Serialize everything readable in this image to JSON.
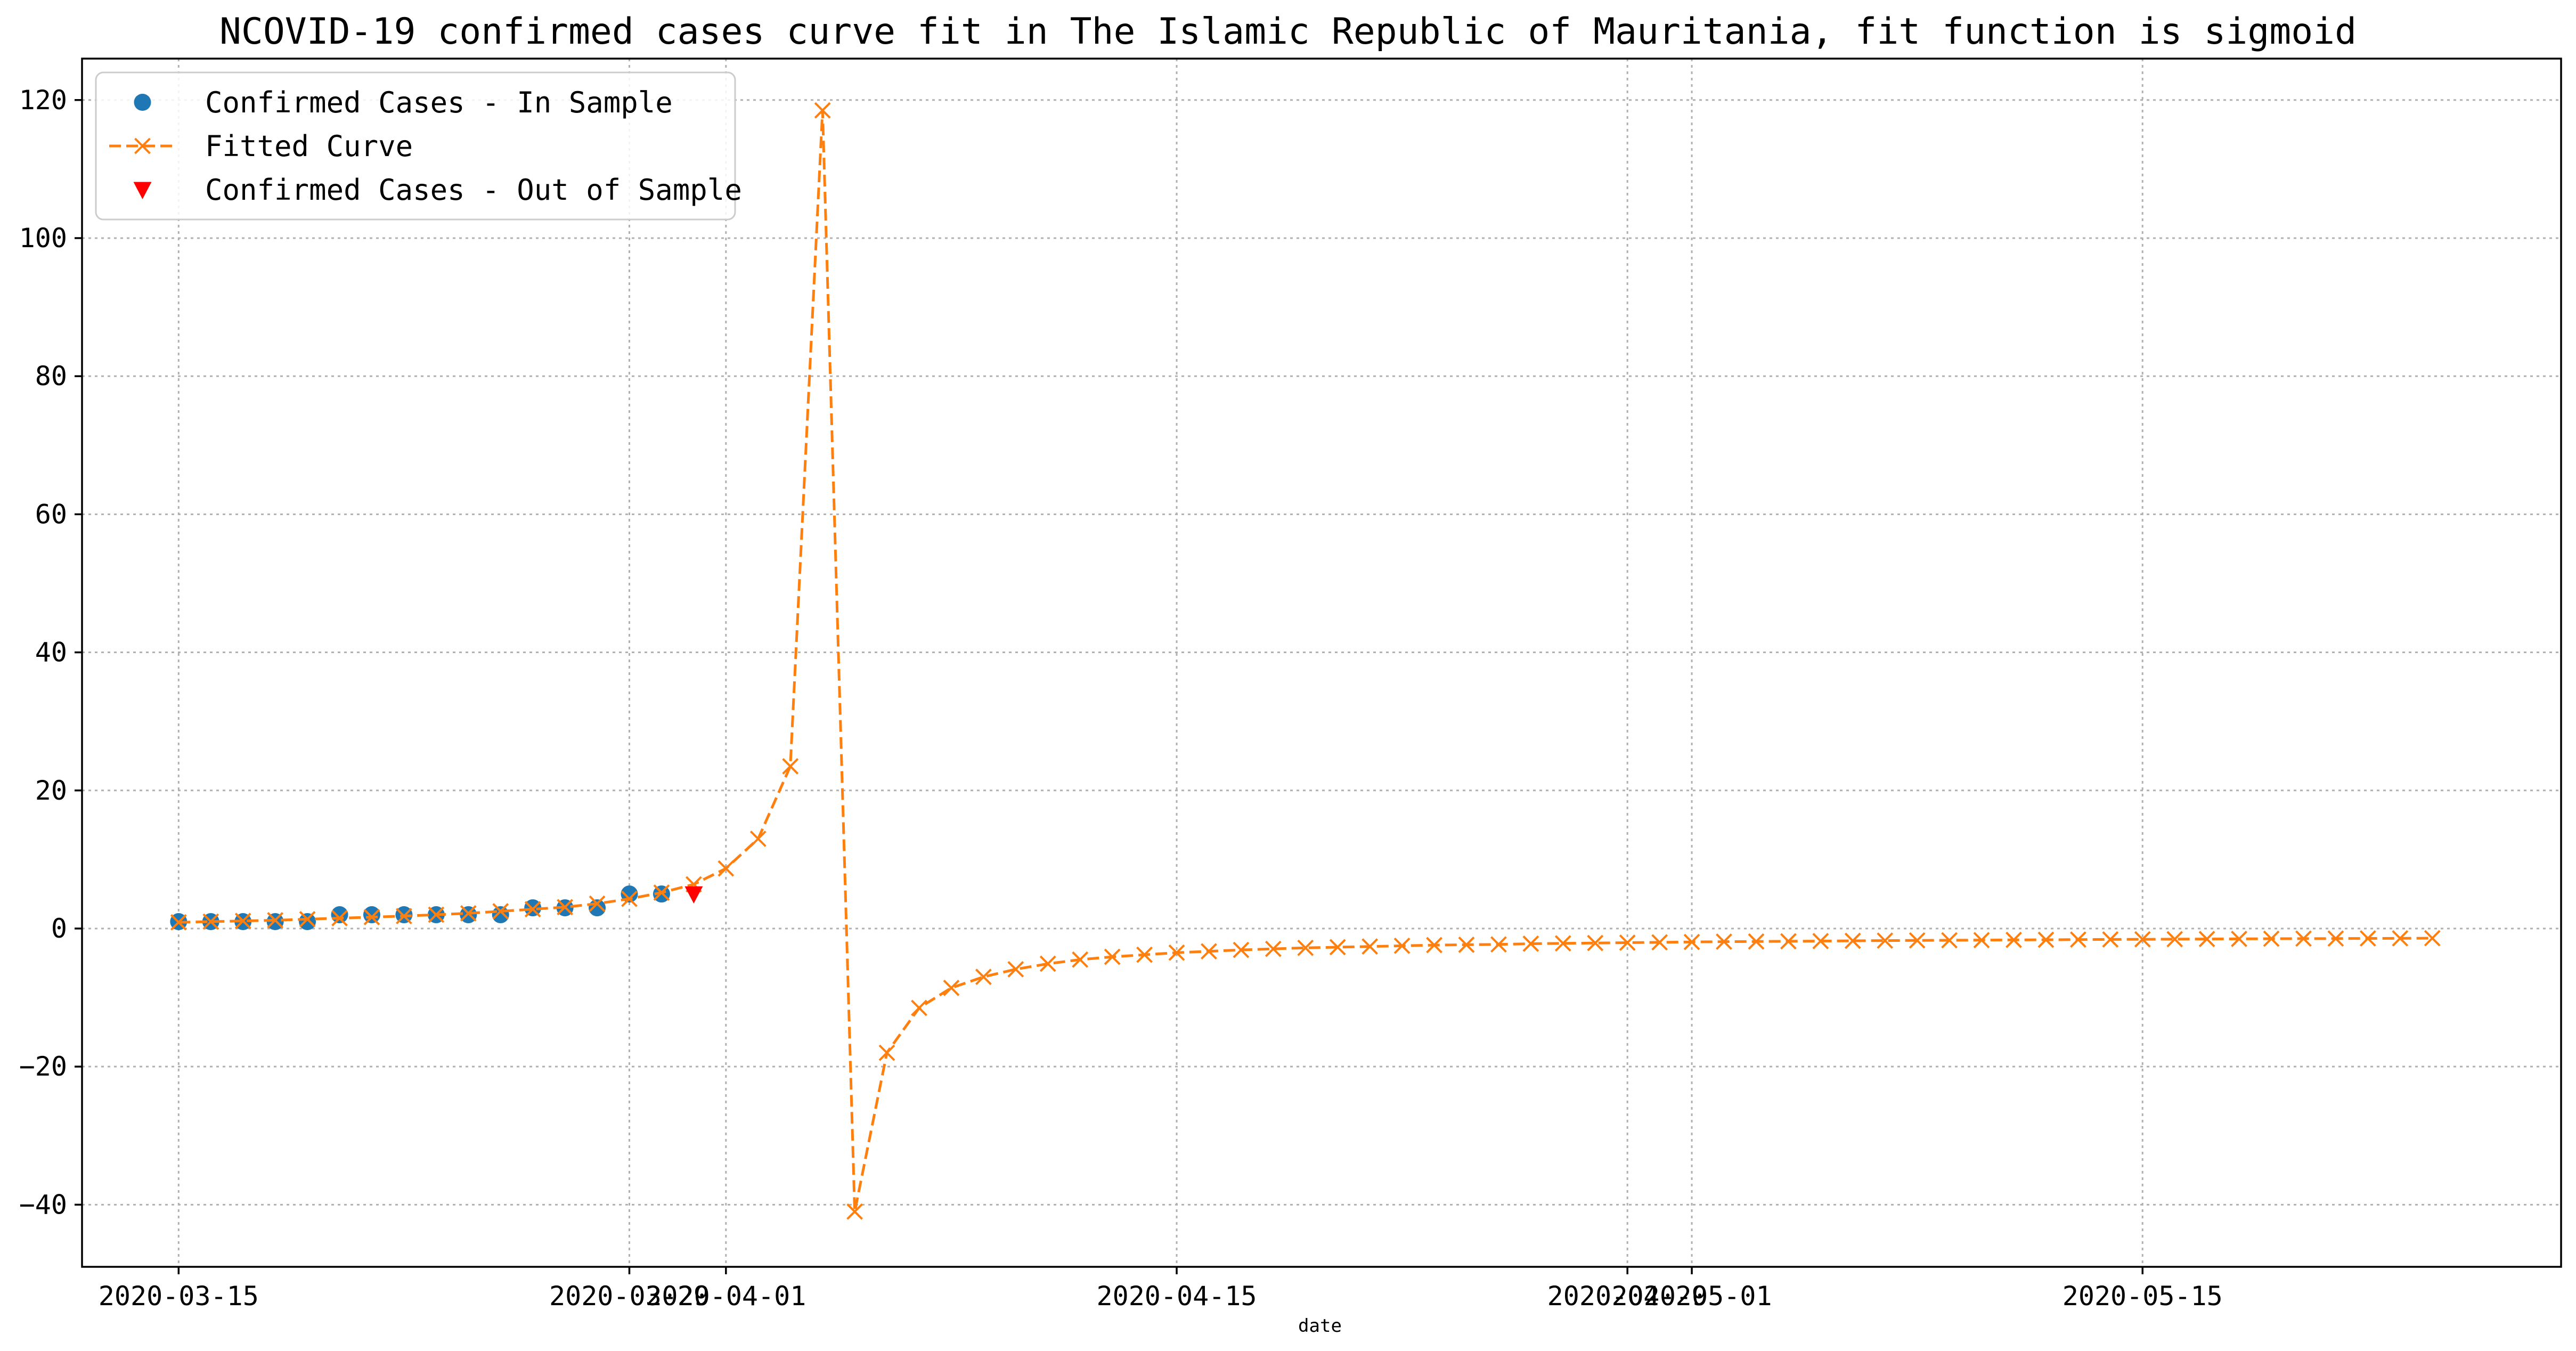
{
  "chart_data": {
    "type": "line",
    "title": "NCOVID-19 confirmed cases curve fit in The Islamic Republic of Mauritania, fit function is sigmoid",
    "xlabel": "date",
    "ylabel": "",
    "xlim": [
      "2020-03-12",
      "2020-05-28"
    ],
    "ylim": [
      -49,
      126
    ],
    "x_ticks": [
      "2020-03-15",
      "2020-03-29",
      "2020-04-01",
      "2020-04-15",
      "2020-04-29",
      "2020-05-01",
      "2020-05-15"
    ],
    "y_ticks": [
      -40,
      -20,
      0,
      20,
      40,
      60,
      80,
      100,
      120
    ],
    "grid": true,
    "legend_position": "top-left",
    "colors": {
      "in_sample": "#1f77b4",
      "fitted": "#ff7f0e",
      "out_sample": "#ff0000"
    },
    "series": [
      {
        "name": "Confirmed Cases - In Sample",
        "style": "markers-circle",
        "x": [
          "2020-03-15",
          "2020-03-16",
          "2020-03-17",
          "2020-03-18",
          "2020-03-19",
          "2020-03-20",
          "2020-03-21",
          "2020-03-22",
          "2020-03-23",
          "2020-03-24",
          "2020-03-25",
          "2020-03-26",
          "2020-03-27",
          "2020-03-28",
          "2020-03-29",
          "2020-03-30"
        ],
        "y": [
          1,
          1,
          1,
          1,
          1,
          2,
          2,
          2,
          2,
          2,
          2,
          3,
          3,
          3,
          5,
          5
        ]
      },
      {
        "name": "Fitted Curve",
        "style": "dashed-x",
        "x": [
          "2020-03-15",
          "2020-03-16",
          "2020-03-17",
          "2020-03-18",
          "2020-03-19",
          "2020-03-20",
          "2020-03-21",
          "2020-03-22",
          "2020-03-23",
          "2020-03-24",
          "2020-03-25",
          "2020-03-26",
          "2020-03-27",
          "2020-03-28",
          "2020-03-29",
          "2020-03-30",
          "2020-03-31",
          "2020-04-01",
          "2020-04-02",
          "2020-04-03",
          "2020-04-04",
          "2020-04-05",
          "2020-04-06",
          "2020-04-07",
          "2020-04-08",
          "2020-04-09",
          "2020-04-10",
          "2020-04-11",
          "2020-04-12",
          "2020-04-13",
          "2020-04-14",
          "2020-04-15",
          "2020-04-16",
          "2020-04-17",
          "2020-04-18",
          "2020-04-19",
          "2020-04-20",
          "2020-04-21",
          "2020-04-22",
          "2020-04-23",
          "2020-04-24",
          "2020-04-25",
          "2020-04-26",
          "2020-04-27",
          "2020-04-28",
          "2020-04-29",
          "2020-04-30",
          "2020-05-01",
          "2020-05-02",
          "2020-05-03",
          "2020-05-04",
          "2020-05-05",
          "2020-05-06",
          "2020-05-07",
          "2020-05-08",
          "2020-05-09",
          "2020-05-10",
          "2020-05-11",
          "2020-05-12",
          "2020-05-13",
          "2020-05-14",
          "2020-05-15",
          "2020-05-16",
          "2020-05-17",
          "2020-05-18",
          "2020-05-19",
          "2020-05-20",
          "2020-05-21",
          "2020-05-22",
          "2020-05-23",
          "2020-05-24"
        ],
        "y": [
          0.9,
          1.0,
          1.1,
          1.2,
          1.35,
          1.5,
          1.65,
          1.8,
          2.0,
          2.2,
          2.5,
          2.8,
          3.1,
          3.6,
          4.3,
          5.2,
          6.4,
          8.7,
          13.0,
          23.5,
          118.5,
          -41.0,
          -18.0,
          -11.5,
          -8.6,
          -7.0,
          -5.9,
          -5.1,
          -4.5,
          -4.1,
          -3.8,
          -3.5,
          -3.3,
          -3.1,
          -2.95,
          -2.8,
          -2.7,
          -2.6,
          -2.5,
          -2.4,
          -2.35,
          -2.3,
          -2.2,
          -2.15,
          -2.1,
          -2.05,
          -2.0,
          -1.95,
          -1.9,
          -1.88,
          -1.85,
          -1.82,
          -1.78,
          -1.75,
          -1.72,
          -1.7,
          -1.68,
          -1.65,
          -1.63,
          -1.6,
          -1.58,
          -1.56,
          -1.54,
          -1.52,
          -1.5,
          -1.48,
          -1.46,
          -1.45,
          -1.43,
          -1.42,
          -1.4
        ]
      },
      {
        "name": "Confirmed Cases - Out of Sample",
        "style": "markers-triangle-down",
        "x": [
          "2020-03-31"
        ],
        "y": [
          5
        ]
      }
    ]
  }
}
